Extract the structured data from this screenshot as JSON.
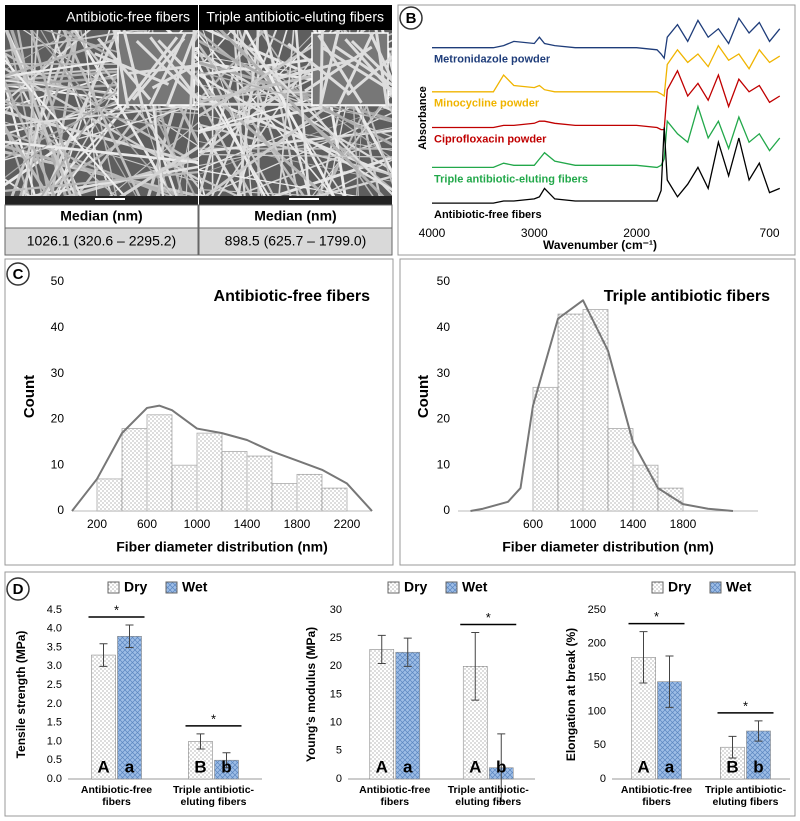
{
  "panels": [
    "A",
    "B",
    "C",
    "D"
  ],
  "sem": {
    "items": [
      {
        "title": "Antibiotic-free fibers",
        "header": "Median (nm)",
        "value": "1026.1 (320.6 – 2295.2)"
      },
      {
        "title": "Triple antibiotic-eluting fibers",
        "header": "Median (nm)",
        "value": "898.5 (625.7 – 1799.0)"
      }
    ]
  },
  "chart_data": [
    {
      "type": "line",
      "x_label": "Wavenumber (cm⁻¹)",
      "y_label": "Absorbance",
      "x": [
        4000,
        3800,
        3600,
        3400,
        3300,
        3200,
        3000,
        2950,
        2900,
        2800,
        2600,
        2400,
        2200,
        2000,
        1800,
        1760,
        1730,
        1700,
        1600,
        1500,
        1400,
        1300,
        1200,
        1100,
        1000,
        900,
        800,
        700,
        600
      ],
      "xlim": [
        4000,
        500
      ],
      "xticks": [
        4000,
        3000,
        2000,
        700
      ],
      "ylim": [
        0,
        100
      ],
      "series": [
        {
          "name": "Metronidazole powder",
          "color": "#1f3d7a",
          "values": [
            83,
            83,
            83,
            83,
            84,
            86,
            85,
            88,
            85,
            84,
            83,
            83,
            83,
            83,
            82,
            80,
            78,
            88,
            94,
            86,
            96,
            88,
            92,
            85,
            97,
            90,
            95,
            86,
            92
          ]
        },
        {
          "name": "Minocycline powder",
          "color": "#f0b400",
          "values": [
            62,
            62,
            62,
            62,
            70,
            65,
            64,
            65,
            63,
            62,
            62,
            62,
            62,
            62,
            62,
            61,
            60,
            75,
            82,
            76,
            80,
            74,
            84,
            77,
            80,
            73,
            82,
            76,
            79
          ]
        },
        {
          "name": "Ciprofloxacin powder",
          "color": "#c00000",
          "values": [
            45,
            45,
            45,
            45,
            46,
            46,
            47,
            48,
            48,
            47,
            46,
            46,
            46,
            46,
            45,
            44,
            44,
            63,
            72,
            60,
            66,
            58,
            70,
            55,
            68,
            62,
            65,
            57,
            60
          ]
        },
        {
          "name": "Triple antibiotic-eluting fibers",
          "color": "#22a84a",
          "values": [
            26,
            26,
            26,
            26,
            28,
            27,
            27,
            30,
            33,
            29,
            27,
            27,
            27,
            27,
            26,
            27,
            30,
            48,
            42,
            38,
            55,
            40,
            48,
            35,
            50,
            38,
            42,
            34,
            40
          ]
        },
        {
          "name": "Antibiotic-free fibers",
          "color": "#000000",
          "values": [
            9,
            9,
            9,
            9,
            10,
            10,
            11,
            12,
            16,
            11,
            10,
            10,
            10,
            10,
            10,
            15,
            45,
            20,
            12,
            18,
            26,
            16,
            38,
            22,
            40,
            20,
            28,
            14,
            16
          ]
        }
      ]
    },
    {
      "type": "histogram",
      "title": "Antibiotic-free fibers",
      "x_label": "Fiber diameter distribution (nm)",
      "y_label": "Count",
      "bins": [
        200,
        400,
        600,
        800,
        1000,
        1200,
        1400,
        1600,
        1800,
        2000,
        2200
      ],
      "values": [
        7,
        18,
        21,
        10,
        17,
        13,
        12,
        6,
        8,
        5
      ],
      "fit": {
        "x": [
          0,
          200,
          400,
          600,
          700,
          800,
          1000,
          1200,
          1400,
          1600,
          1800,
          2000,
          2200,
          2400
        ],
        "values": [
          0,
          7,
          17,
          22.5,
          23,
          22,
          18,
          17,
          15.5,
          13,
          11,
          9,
          6,
          0
        ],
        "color": "#777777"
      },
      "xlim": [
        0,
        2400
      ],
      "xticks": [
        200,
        600,
        1000,
        1400,
        1800,
        2200
      ],
      "ylim": [
        0,
        50
      ],
      "yticks": [
        0,
        10,
        20,
        30,
        40,
        50
      ]
    },
    {
      "type": "histogram",
      "title": "Triple antibiotic fibers",
      "x_label": "Fiber diameter distribution (nm)",
      "y_label": "Count",
      "bins": [
        600,
        800,
        1000,
        1200,
        1400,
        1600,
        1800
      ],
      "values": [
        27,
        43,
        44,
        18,
        10,
        5
      ],
      "fit": {
        "x": [
          100,
          200,
          400,
          500,
          600,
          800,
          1000,
          1200,
          1400,
          1600,
          1800,
          2000,
          2200
        ],
        "values": [
          0,
          0.5,
          2,
          5,
          23,
          42,
          46,
          35,
          15,
          5,
          1.5,
          0.5,
          0
        ],
        "color": "#777777"
      },
      "xlim": [
        0,
        2400
      ],
      "xticks": [
        600,
        1000,
        1400,
        1800
      ],
      "ylim": [
        0,
        50
      ],
      "yticks": [
        0,
        10,
        20,
        30,
        40,
        50
      ]
    },
    {
      "type": "bar",
      "y_label": "Tensile strength (MPa)",
      "categories": [
        "Antibiotic-free fibers",
        "Triple antibiotic-eluting fibers"
      ],
      "series": [
        {
          "name": "Dry",
          "pattern": "dots",
          "values": [
            3.3,
            1.0
          ],
          "errors": [
            0.3,
            0.2
          ],
          "letters": [
            "A",
            "B"
          ]
        },
        {
          "name": "Wet",
          "pattern": "hatch",
          "values": [
            3.8,
            0.5
          ],
          "errors": [
            0.3,
            0.2
          ],
          "letters": [
            "a",
            "b"
          ]
        }
      ],
      "significance": [
        "*",
        "*"
      ],
      "ylim": [
        0,
        4.5
      ],
      "yticks": [
        {
          "value": 0,
          "label": "0.0"
        },
        0.5,
        {
          "value": 1,
          "label": "1.0"
        },
        1.5,
        {
          "value": 2,
          "label": "2.0"
        },
        2.5,
        {
          "value": 3,
          "label": "3.0"
        },
        3.5,
        {
          "value": 4,
          "label": "4.0"
        },
        4.5
      ]
    },
    {
      "type": "bar",
      "y_label": "Young’s modulus (MPa)",
      "categories": [
        "Antibiotic-free fibers",
        "Triple antibiotic-eluting fibers"
      ],
      "series": [
        {
          "name": "Dry",
          "pattern": "dots",
          "values": [
            23,
            20
          ],
          "errors": [
            2.5,
            6
          ],
          "letters": [
            "A",
            "A"
          ]
        },
        {
          "name": "Wet",
          "pattern": "hatch",
          "values": [
            22.5,
            2
          ],
          "errors": [
            2.5,
            6
          ],
          "letters": [
            "a",
            "b"
          ]
        }
      ],
      "significance": [
        null,
        "*"
      ],
      "ylim": [
        0,
        30
      ],
      "yticks": [
        0,
        5,
        10,
        15,
        20,
        25,
        30
      ]
    },
    {
      "type": "bar",
      "y_label": "Elongation at break (%)",
      "categories": [
        "Antibiotic-free fibers",
        "Triple antibiotic-eluting fibers"
      ],
      "series": [
        {
          "name": "Dry",
          "pattern": "dots",
          "values": [
            180,
            47
          ],
          "errors": [
            38,
            16
          ],
          "letters": [
            "A",
            "B"
          ]
        },
        {
          "name": "Wet",
          "pattern": "hatch",
          "values": [
            144,
            71
          ],
          "errors": [
            38,
            15
          ],
          "letters": [
            "a",
            "b"
          ]
        }
      ],
      "significance": [
        "*",
        "*"
      ],
      "ylim": [
        0,
        250
      ],
      "yticks": [
        0,
        50,
        100,
        150,
        200,
        250
      ]
    }
  ]
}
